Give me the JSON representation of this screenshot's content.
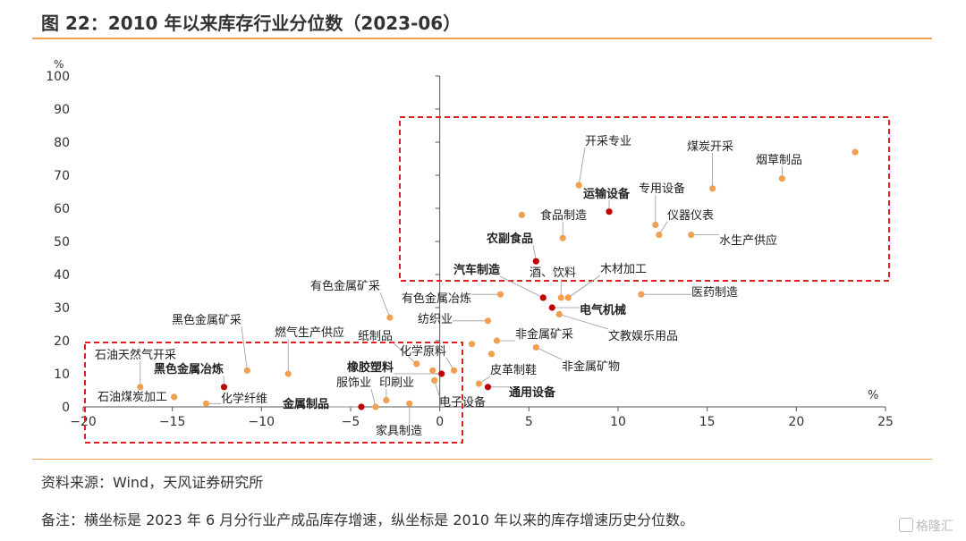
{
  "header": {
    "title": "图 22：2010 年以来库存行业分位数（2023-06）"
  },
  "footer": {
    "source": "资料来源：Wind，天风证券研究所",
    "note": "备注：横坐标是 2023 年 6 月分行业产成品库存增速，纵坐标是 2010 年以来的库存增速历史分位数。"
  },
  "watermark": {
    "text": "格隆汇"
  },
  "colors": {
    "orange": "#f0a050",
    "red": "#c00000",
    "box": "#e02020",
    "axis": "#555555"
  },
  "chart_data": {
    "type": "scatter",
    "title": "图 22：2010 年以来库存行业分位数（2023-06）",
    "xlabel": "%",
    "ylabel": "%",
    "xlim": [
      -20,
      25
    ],
    "ylim": [
      0,
      100
    ],
    "xticks": [
      "−20",
      "−15",
      "−10",
      "−5",
      "0",
      "5",
      "10",
      "15",
      "20",
      "25"
    ],
    "yticks": [
      "0",
      "10",
      "20",
      "30",
      "40",
      "50",
      "60",
      "70",
      "80",
      "90",
      "100"
    ],
    "grid": false,
    "points": [
      {
        "name": "开采专业",
        "x": 7.8,
        "y": 67,
        "highlight": false
      },
      {
        "name": "煤炭开采",
        "x": 15.3,
        "y": 66,
        "highlight": false
      },
      {
        "name": "烟草制品",
        "x": 19.2,
        "y": 69,
        "highlight": false
      },
      {
        "name": "",
        "x": 23.3,
        "y": 77,
        "highlight": false
      },
      {
        "name": "运输设备",
        "x": 9.5,
        "y": 59,
        "highlight": true
      },
      {
        "name": "专用设备",
        "x": 12.1,
        "y": 55,
        "highlight": false
      },
      {
        "name": "食品制造",
        "x": 6.9,
        "y": 51,
        "highlight": false
      },
      {
        "name": "",
        "x": 4.6,
        "y": 58,
        "highlight": false
      },
      {
        "name": "仪器仪表",
        "x": 12.3,
        "y": 52,
        "highlight": false
      },
      {
        "name": "水生产供应",
        "x": 14.1,
        "y": 52,
        "highlight": false
      },
      {
        "name": "农副食品",
        "x": 5.4,
        "y": 44,
        "highlight": true
      },
      {
        "name": "汽车制造",
        "x": 5.8,
        "y": 33,
        "highlight": true
      },
      {
        "name": "酒、饮料",
        "x": 6.8,
        "y": 33,
        "highlight": false
      },
      {
        "name": "木材加工",
        "x": 7.2,
        "y": 33,
        "highlight": false
      },
      {
        "name": "医药制造",
        "x": 11.3,
        "y": 34,
        "highlight": false
      },
      {
        "name": "有色金属冶炼",
        "x": 3.4,
        "y": 34,
        "highlight": false
      },
      {
        "name": "电气机械",
        "x": 6.3,
        "y": 30,
        "highlight": true
      },
      {
        "name": "纺织业",
        "x": 2.7,
        "y": 26,
        "highlight": false
      },
      {
        "name": "文教娱乐用品",
        "x": 6.7,
        "y": 28,
        "highlight": false
      },
      {
        "name": "有色金属矿采",
        "x": -2.8,
        "y": 27,
        "highlight": false
      },
      {
        "name": "非金属矿采",
        "x": 3.2,
        "y": 20,
        "highlight": false
      },
      {
        "name": "",
        "x": 1.8,
        "y": 19,
        "highlight": false
      },
      {
        "name": "非金属矿物",
        "x": 5.4,
        "y": 18,
        "highlight": false
      },
      {
        "name": "",
        "x": 2.9,
        "y": 16,
        "highlight": false
      },
      {
        "name": "纸制品",
        "x": -1.3,
        "y": 13,
        "highlight": false
      },
      {
        "name": "化学原料",
        "x": 0.8,
        "y": 11,
        "highlight": false
      },
      {
        "name": "橡胶塑料",
        "x": 0.1,
        "y": 10,
        "highlight": true
      },
      {
        "name": "",
        "x": -0.4,
        "y": 11,
        "highlight": false
      },
      {
        "name": "皮革制鞋",
        "x": 2.2,
        "y": 7,
        "highlight": false
      },
      {
        "name": "电子设备",
        "x": -0.3,
        "y": 8,
        "highlight": false
      },
      {
        "name": "通用设备",
        "x": 2.7,
        "y": 6,
        "highlight": true
      },
      {
        "name": "燃气生产供应",
        "x": -8.5,
        "y": 10,
        "highlight": false
      },
      {
        "name": "黑色金属矿采",
        "x": -10.8,
        "y": 11,
        "highlight": false
      },
      {
        "name": "石油天然气开采",
        "x": -16.8,
        "y": 6,
        "highlight": false
      },
      {
        "name": "黑色金属冶炼",
        "x": -12.1,
        "y": 6,
        "highlight": true
      },
      {
        "name": "石油煤炭加工",
        "x": -14.9,
        "y": 3,
        "highlight": false
      },
      {
        "name": "化学纤维",
        "x": -13.1,
        "y": 1,
        "highlight": false
      },
      {
        "name": "金属制品",
        "x": -4.4,
        "y": 0,
        "highlight": true
      },
      {
        "name": "服饰业",
        "x": -3.6,
        "y": 0,
        "highlight": false
      },
      {
        "name": "印刷业",
        "x": -3.0,
        "y": 2,
        "highlight": false
      },
      {
        "name": "家具制造",
        "x": -1.7,
        "y": 1,
        "highlight": false
      }
    ]
  }
}
